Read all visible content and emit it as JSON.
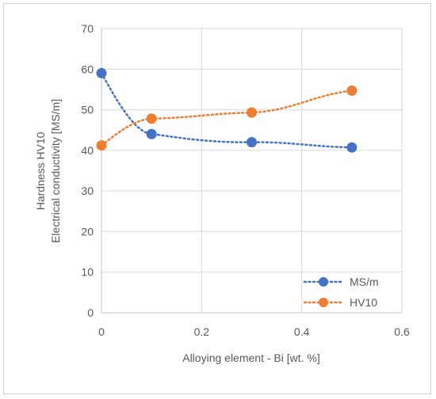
{
  "chart_data": {
    "type": "line",
    "xlabel": "Alloying element - Bi [wt. %]",
    "ylabel_lines": [
      "Hardness HV10",
      "Electrical conductivity [MS/m]"
    ],
    "xlim": [
      0,
      0.6
    ],
    "ylim": [
      0,
      70
    ],
    "x_ticks": [
      "0",
      "0.2",
      "0.4",
      "0.6"
    ],
    "y_ticks": [
      "0",
      "10",
      "20",
      "30",
      "40",
      "50",
      "60",
      "70"
    ],
    "grid": true,
    "legend_position": "bottom-right",
    "series": [
      {
        "name": "MS/m",
        "color": "#4472C4",
        "line_style": "dotted",
        "x": [
          0,
          0.1,
          0.3,
          0.5
        ],
        "y": [
          59,
          44,
          42,
          40.7
        ]
      },
      {
        "name": "HV10",
        "color": "#ED7D31",
        "line_style": "dotted",
        "x": [
          0,
          0.1,
          0.3,
          0.5
        ],
        "y": [
          41.2,
          47.8,
          49.3,
          54.7
        ]
      }
    ]
  }
}
